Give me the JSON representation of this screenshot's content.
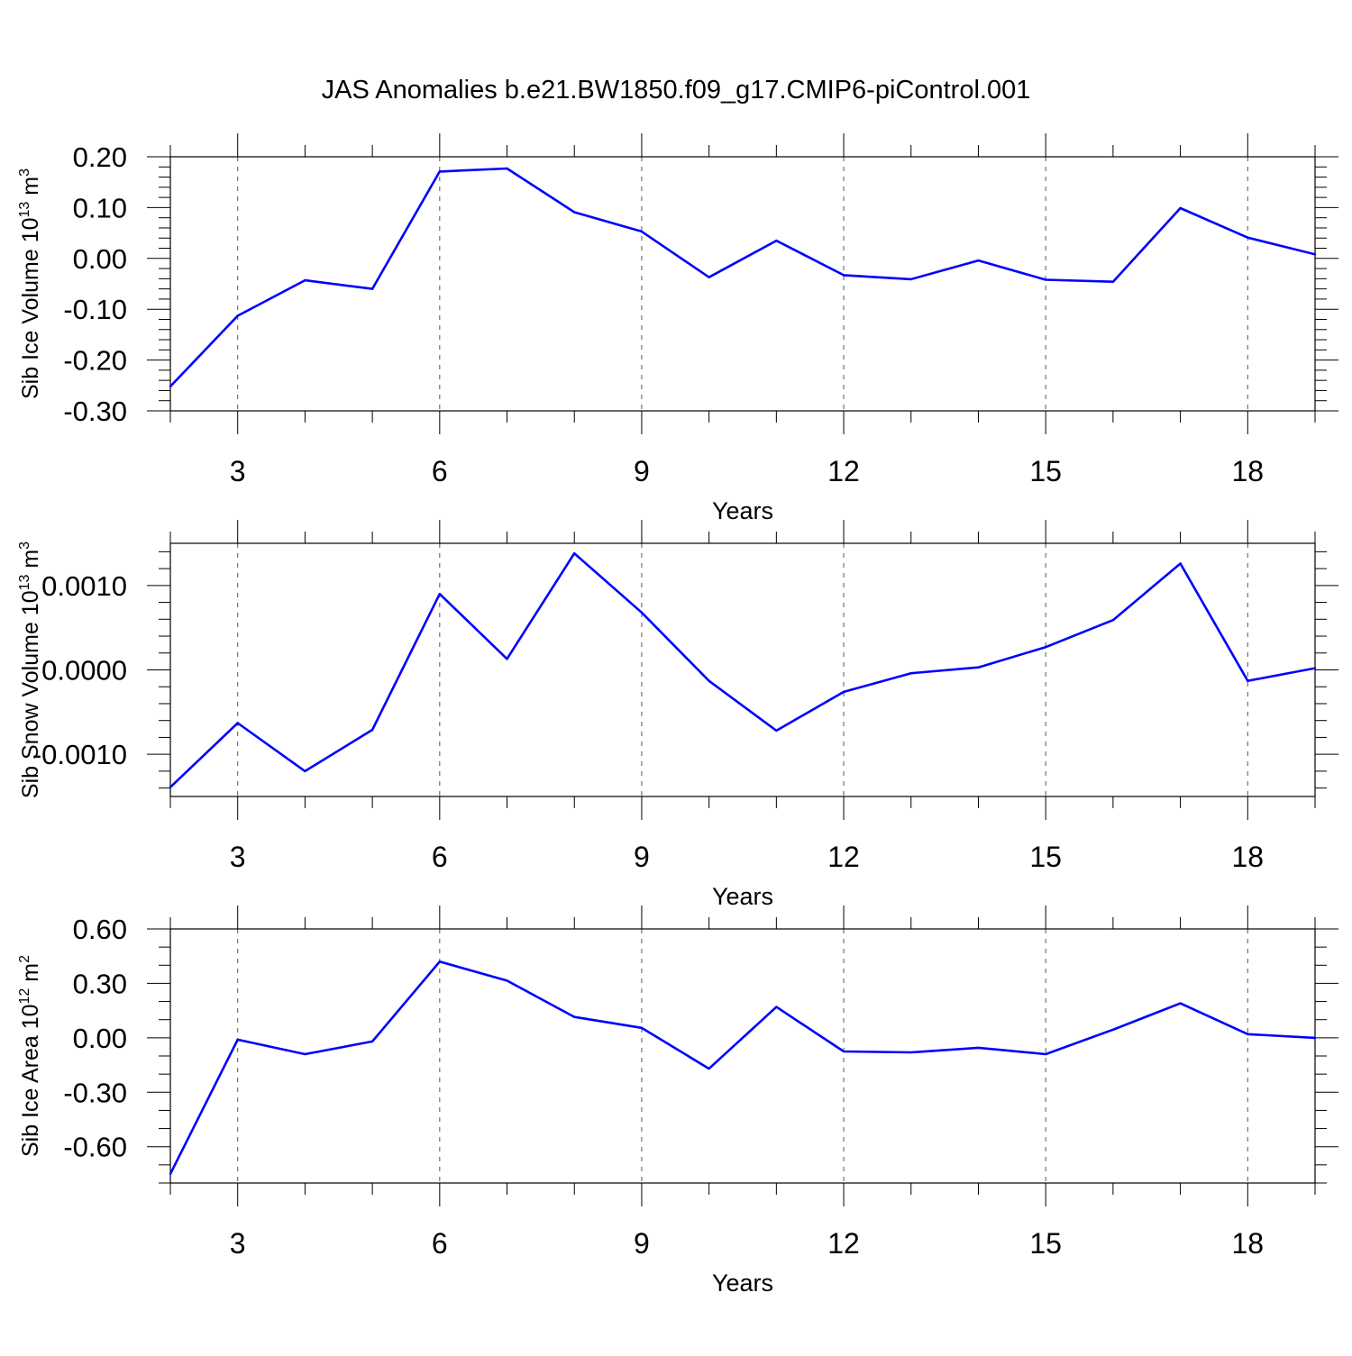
{
  "figure": {
    "title": "JAS Anomalies b.e21.BW1850.f09_g17.CMIP6-piControl.001",
    "line_color": "#0000ff"
  },
  "chart_data": [
    {
      "type": "line",
      "panel": "top",
      "ylabel_prefix": "Sib Ice Volume 10",
      "ylabel_exp": "13",
      "ylabel_unit": " m",
      "ylabel_unit_exp": "3",
      "xlabel": "Years",
      "xlim": [
        2,
        19
      ],
      "ylim": [
        -0.3,
        0.2
      ],
      "yticks": [
        -0.3,
        -0.2,
        -0.1,
        0.0,
        0.1,
        0.2
      ],
      "ytick_labels": [
        "-0.30",
        "-0.20",
        "-0.10",
        "0.00",
        "0.10",
        "0.20"
      ],
      "yminor_step": 0.02,
      "xticks": [
        3,
        6,
        9,
        12,
        15,
        18
      ],
      "xtick_labels": [
        "3",
        "6",
        "9",
        "12",
        "15",
        "18"
      ],
      "x": [
        2,
        3,
        4,
        5,
        6,
        7,
        8,
        9,
        10,
        11,
        12,
        13,
        14,
        15,
        16,
        17,
        18,
        19
      ],
      "values": [
        -0.252,
        -0.113,
        -0.043,
        -0.06,
        0.171,
        0.177,
        0.091,
        0.053,
        -0.037,
        0.035,
        -0.033,
        -0.041,
        -0.004,
        -0.042,
        -0.046,
        0.099,
        0.041,
        0.008
      ]
    },
    {
      "type": "line",
      "panel": "middle",
      "ylabel_prefix": "Sib Snow Volume 10",
      "ylabel_exp": "13",
      "ylabel_unit": " m",
      "ylabel_unit_exp": "3",
      "xlabel": "Years",
      "xlim": [
        2,
        19
      ],
      "ylim": [
        -0.0015,
        0.0015
      ],
      "yticks": [
        -0.001,
        0.0,
        0.001
      ],
      "ytick_labels": [
        "-0.0010",
        "0.0000",
        "0.0010"
      ],
      "yminor_step": 0.0002,
      "xticks": [
        3,
        6,
        9,
        12,
        15,
        18
      ],
      "xtick_labels": [
        "3",
        "6",
        "9",
        "12",
        "15",
        "18"
      ],
      "x": [
        2,
        3,
        4,
        5,
        6,
        7,
        8,
        9,
        10,
        11,
        12,
        13,
        14,
        15,
        16,
        17,
        18,
        19
      ],
      "values": [
        -0.00139,
        -0.00063,
        -0.0012,
        -0.00071,
        0.0009,
        0.00013,
        0.00138,
        0.00068,
        -0.00013,
        -0.00072,
        -0.00026,
        -4e-05,
        3e-05,
        0.00027,
        0.00059,
        0.00126,
        -0.00013,
        2e-05
      ]
    },
    {
      "type": "line",
      "panel": "bottom",
      "ylabel_prefix": "Sib Ice Area 10",
      "ylabel_exp": "12",
      "ylabel_unit": " m",
      "ylabel_unit_exp": "2",
      "xlabel": "Years",
      "xlim": [
        2,
        19
      ],
      "ylim": [
        -0.8,
        0.6
      ],
      "yticks": [
        -0.6,
        -0.3,
        0.0,
        0.3,
        0.6
      ],
      "ytick_labels": [
        "-0.60",
        "-0.30",
        "0.00",
        "0.30",
        "0.60"
      ],
      "yminor_step": 0.1,
      "xticks": [
        3,
        6,
        9,
        12,
        15,
        18
      ],
      "xtick_labels": [
        "3",
        "6",
        "9",
        "12",
        "15",
        "18"
      ],
      "x": [
        2,
        3,
        4,
        5,
        6,
        7,
        8,
        9,
        10,
        11,
        12,
        13,
        14,
        15,
        16,
        17,
        18,
        19
      ],
      "values": [
        -0.75,
        -0.01,
        -0.09,
        -0.02,
        0.42,
        0.315,
        0.115,
        0.055,
        -0.17,
        0.17,
        -0.075,
        -0.08,
        -0.055,
        -0.09,
        0.045,
        0.19,
        0.02,
        0.0
      ]
    }
  ]
}
